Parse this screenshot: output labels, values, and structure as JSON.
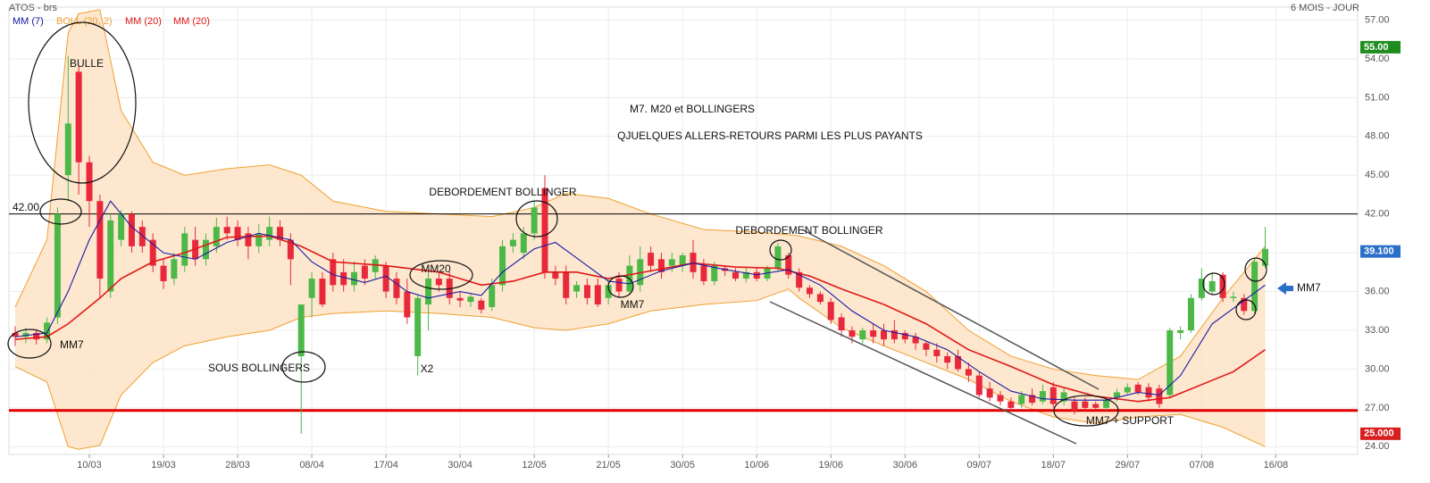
{
  "chart_data": {
    "type": "candlestick",
    "title": "ATOS - brs",
    "period": "6 MOIS - JOUR",
    "legend": [
      {
        "name": "MM (7)",
        "color": "#1a1aa6"
      },
      {
        "name": "BOLL (20, 2)",
        "color": "#f0a030"
      },
      {
        "name": "MM (20)",
        "color": "#e01818"
      },
      {
        "name": "MM (20)",
        "color": "#e01818"
      }
    ],
    "up_color": "#4cb848",
    "down_color": "#e8293c",
    "ohlc": [
      [
        32.8,
        33.3,
        31.8,
        32.5
      ],
      [
        32.5,
        33.2,
        32,
        32.8
      ],
      [
        32.8,
        33.1,
        31.9,
        32.3
      ],
      [
        32.3,
        34,
        32,
        33.6
      ],
      [
        34,
        42.5,
        33.5,
        42
      ],
      [
        45,
        54.2,
        43,
        49
      ],
      [
        53,
        53.5,
        43.5,
        46
      ],
      [
        46,
        46.5,
        41,
        43
      ],
      [
        43,
        43.5,
        35.5,
        37
      ],
      [
        36,
        42,
        35.5,
        41.5
      ],
      [
        40,
        42.3,
        39.5,
        42
      ],
      [
        42,
        42.2,
        39,
        39.5
      ],
      [
        41,
        41.5,
        39,
        39.5
      ],
      [
        40,
        40.5,
        37.5,
        38
      ],
      [
        38,
        38.5,
        36.2,
        36.8
      ],
      [
        37,
        39,
        36.5,
        38.5
      ],
      [
        38,
        41,
        37.5,
        40.5
      ],
      [
        40,
        41,
        38,
        38.5
      ],
      [
        38.5,
        40.5,
        38,
        40
      ],
      [
        39.5,
        41.7,
        39,
        41
      ],
      [
        41,
        41.8,
        40,
        40.5
      ],
      [
        41,
        41.5,
        39.5,
        40
      ],
      [
        40.5,
        41,
        38.5,
        39.5
      ],
      [
        39.5,
        41.2,
        39,
        40.5
      ],
      [
        40,
        41.8,
        39.5,
        41
      ],
      [
        41,
        41.5,
        39.5,
        40
      ],
      [
        40,
        40.5,
        36.5,
        38.5
      ],
      [
        31,
        35,
        25,
        35
      ],
      [
        35.5,
        37.5,
        34,
        37
      ],
      [
        37,
        37.5,
        34.8,
        35
      ],
      [
        38.5,
        39,
        36,
        36.5
      ],
      [
        37.5,
        38.5,
        36,
        36.5
      ],
      [
        36.5,
        38.3,
        36,
        37.5
      ],
      [
        38,
        38.5,
        36.5,
        37
      ],
      [
        37.5,
        38.8,
        37,
        38.5
      ],
      [
        38,
        38.3,
        35.5,
        36
      ],
      [
        37,
        37.5,
        35,
        35.5
      ],
      [
        36,
        37,
        33.5,
        34
      ],
      [
        31,
        35.8,
        29.5,
        35.5
      ],
      [
        35,
        37.5,
        33,
        37
      ],
      [
        37,
        37.5,
        36,
        36.5
      ],
      [
        37,
        37.5,
        35,
        35.5
      ],
      [
        35.5,
        36,
        34.8,
        35.3
      ],
      [
        35.2,
        35.8,
        34.8,
        35.6
      ],
      [
        35.3,
        35.5,
        34.3,
        34.6
      ],
      [
        34.8,
        37,
        34.5,
        36.5
      ],
      [
        36.5,
        40,
        36,
        39.5
      ],
      [
        39.5,
        40.5,
        39,
        40
      ],
      [
        39,
        41,
        38.5,
        40.5
      ],
      [
        40.5,
        43,
        40,
        42.5
      ],
      [
        44,
        45,
        37,
        37.5
      ],
      [
        37.5,
        38,
        36.5,
        37
      ],
      [
        37.5,
        38,
        35,
        35.5
      ],
      [
        36,
        36.8,
        35.5,
        36.5
      ],
      [
        36.5,
        37,
        35,
        35.5
      ],
      [
        36.5,
        37,
        34.8,
        35
      ],
      [
        35.5,
        37,
        35,
        36.5
      ],
      [
        37,
        37.5,
        35.5,
        36
      ],
      [
        36,
        38.8,
        35.8,
        38
      ],
      [
        36.5,
        39.5,
        36,
        38.5
      ],
      [
        39,
        39.5,
        37.5,
        38
      ],
      [
        38.5,
        39,
        37,
        37.5
      ],
      [
        38,
        39,
        37.5,
        38.5
      ],
      [
        38,
        39,
        37.5,
        38.8
      ],
      [
        39,
        40,
        37,
        37.5
      ],
      [
        38,
        38.5,
        36.5,
        36.8
      ],
      [
        36.8,
        38.3,
        36.5,
        38
      ],
      [
        37.8,
        38,
        37.2,
        37.6
      ],
      [
        37.5,
        37.8,
        36.8,
        37
      ],
      [
        37,
        37.8,
        36.7,
        37.5
      ],
      [
        37.5,
        37.8,
        36.8,
        37
      ],
      [
        37,
        38,
        36.8,
        37.8
      ],
      [
        37.8,
        39.8,
        37.5,
        39.5
      ],
      [
        38.8,
        39,
        37,
        37.3
      ],
      [
        37.5,
        37.8,
        36,
        36.3
      ],
      [
        36.3,
        36.5,
        35.5,
        35.8
      ],
      [
        35.8,
        36,
        35,
        35.2
      ],
      [
        35.2,
        35.5,
        33.5,
        33.8
      ],
      [
        34,
        34.3,
        32.5,
        33
      ],
      [
        33,
        33.3,
        32,
        32.5
      ],
      [
        32.3,
        33.2,
        32,
        33
      ],
      [
        33,
        33.5,
        32,
        32.5
      ],
      [
        33,
        33.5,
        31.8,
        32.3
      ],
      [
        33,
        33.8,
        32,
        32.3
      ],
      [
        32.8,
        33,
        32,
        32.3
      ],
      [
        32.5,
        32.8,
        31.5,
        32
      ],
      [
        32,
        32.2,
        31,
        31.5
      ],
      [
        31.5,
        32,
        30.5,
        31
      ],
      [
        31,
        31.3,
        30,
        30.5
      ],
      [
        31,
        31.5,
        29.8,
        30
      ],
      [
        30,
        30.5,
        29,
        29.5
      ],
      [
        29.5,
        29.8,
        27.8,
        28
      ],
      [
        28.5,
        29,
        27.5,
        27.8
      ],
      [
        28,
        28.3,
        27.2,
        27.5
      ],
      [
        27.5,
        27.8,
        26.8,
        27
      ],
      [
        27.3,
        28.3,
        27,
        28
      ],
      [
        28,
        28.5,
        27.2,
        27.4
      ],
      [
        27.5,
        28.8,
        27.3,
        28.3
      ],
      [
        28.6,
        29,
        27,
        27.3
      ],
      [
        27.5,
        28.5,
        27.2,
        28.2
      ],
      [
        27.5,
        27.8,
        26.5,
        26.8
      ],
      [
        27.5,
        27.8,
        26.8,
        27
      ],
      [
        27.3,
        27.5,
        26.8,
        27
      ],
      [
        27,
        27.8,
        26.8,
        27.6
      ],
      [
        27.8,
        28.5,
        27.5,
        28.2
      ],
      [
        28.2,
        28.9,
        28,
        28.6
      ],
      [
        28.8,
        29,
        28,
        28.2
      ],
      [
        28.6,
        28.9,
        27.5,
        27.8
      ],
      [
        28.5,
        28.8,
        27,
        27.3
      ],
      [
        28,
        33.2,
        27.8,
        33
      ],
      [
        32.8,
        33.3,
        32.3,
        33
      ],
      [
        33,
        35.8,
        32.8,
        35.5
      ],
      [
        35.5,
        37.8,
        35.3,
        37
      ],
      [
        36,
        37.5,
        35.8,
        36.8
      ],
      [
        37.3,
        37.5,
        35.2,
        35.5
      ],
      [
        35.5,
        36,
        35.2,
        35.6
      ],
      [
        35.5,
        35.8,
        34.2,
        34.5
      ],
      [
        34.5,
        38.5,
        34.3,
        38.3
      ],
      [
        38,
        41,
        37.8,
        39.3
      ]
    ],
    "bollinger": {
      "color": "#f0a030",
      "fill": "#fde3c6",
      "x": [
        0,
        3,
        5,
        6,
        8,
        10,
        13,
        16,
        20,
        24,
        27,
        30,
        35,
        40,
        45,
        49,
        52,
        56,
        60,
        65,
        70,
        73,
        74,
        78,
        82,
        86,
        90,
        94,
        98,
        102,
        106,
        110,
        114,
        118
      ],
      "upper": [
        34.8,
        40,
        56,
        57.5,
        57.8,
        50,
        46,
        45,
        45.5,
        45.8,
        45,
        43,
        42.2,
        42,
        41.8,
        42.5,
        43.6,
        43.2,
        42,
        40.8,
        40.6,
        40.4,
        40.3,
        39.5,
        38,
        36,
        33,
        31,
        30,
        29.5,
        29.2,
        31,
        35.5,
        39.5
      ],
      "lower": [
        30.2,
        29,
        24,
        23.8,
        24.1,
        28,
        30.5,
        31.8,
        32.5,
        33,
        34,
        34.3,
        34.5,
        34.3,
        34,
        33.2,
        33,
        33.5,
        34.5,
        35,
        35.3,
        36.2,
        35.5,
        33.2,
        31.8,
        30.5,
        29.2,
        27.5,
        26.3,
        25.8,
        26.3,
        26.5,
        25.5,
        24
      ]
    },
    "ma_lines": [
      {
        "color": "#e01818",
        "x": [
          0,
          3,
          5,
          8,
          10,
          13,
          16,
          20,
          24,
          27,
          30,
          35,
          40,
          44,
          47,
          50,
          53,
          56,
          60,
          64,
          68,
          72,
          75,
          78,
          82,
          86,
          90,
          94,
          98,
          102,
          106,
          109,
          112,
          115,
          118
        ],
        "values": [
          32.3,
          32.5,
          33.5,
          35.5,
          37,
          38.3,
          39,
          40.2,
          40.3,
          39.5,
          38.3,
          38,
          37.5,
          36.5,
          36.8,
          37.5,
          37.5,
          37,
          37.6,
          38.2,
          37.9,
          37.8,
          37.2,
          36.2,
          35,
          33.5,
          31.5,
          30.2,
          28.8,
          27.9,
          27.5,
          27.8,
          28.8,
          29.8,
          31.5
        ]
      },
      {
        "color": "#1a1aa6",
        "x": [
          0,
          3,
          5,
          7,
          9,
          11,
          14,
          17,
          20,
          23,
          26,
          28,
          30,
          33,
          35,
          37,
          39,
          42,
          44,
          46,
          49,
          51,
          53,
          56,
          58,
          61,
          64,
          67,
          70,
          73,
          76,
          79,
          82,
          85,
          88,
          91,
          94,
          97,
          100,
          103,
          106,
          108,
          110,
          113,
          116,
          118
        ],
        "values": [
          32.5,
          32.8,
          36,
          40,
          43,
          41,
          39,
          38.5,
          39.8,
          40.5,
          40,
          38.3,
          37.3,
          36.7,
          37.2,
          36,
          35.5,
          36,
          35.7,
          37.5,
          39.3,
          39.8,
          38.6,
          36.8,
          36.6,
          37.6,
          38.2,
          37.7,
          37.3,
          37.7,
          36.5,
          34.5,
          33,
          32.5,
          31.5,
          29.8,
          28.3,
          27.7,
          27.6,
          27.6,
          28.2,
          28,
          29.5,
          33.5,
          35.3,
          36.5
        ]
      }
    ],
    "hlines": [
      {
        "value": 42,
        "color": "#000000"
      },
      {
        "value": 26.8,
        "color": "#e00000"
      }
    ],
    "price_tags": [
      {
        "value": 54.9,
        "label": "55.00",
        "color": "#1e8c1e"
      },
      {
        "value": 39.1,
        "label": "39.100",
        "color": "#2a6fc9"
      },
      {
        "value": 25,
        "label": "25.000",
        "color": "#d81e1e"
      }
    ],
    "annotations": [
      "BULLE",
      "42.00",
      "MM7",
      "SOUS BOLLINGERS",
      "X2",
      "MM20",
      "DEBORDEMENT BOLLINGER",
      "M7. M20 et BOLLINGERS",
      "QJUELQUES ALLERS-RETOURS PARMI LES PLUS PAYANTS",
      "MM7",
      "DEBORDEMENT BOLLINGER",
      "MM7 + SUPPORT",
      "MM7"
    ],
    "ylim": [
      23.4,
      58
    ],
    "yticks": [
      {
        "value": 24,
        "label": "24.00"
      },
      {
        "value": 27,
        "label": "27.00"
      },
      {
        "value": 30,
        "label": "30.00"
      },
      {
        "value": 33,
        "label": "33.00"
      },
      {
        "value": 36,
        "label": "36.00"
      },
      {
        "value": 39,
        "label": "39.00"
      },
      {
        "value": 42,
        "label": "42.00"
      },
      {
        "value": 45,
        "label": "45.00"
      },
      {
        "value": 48,
        "label": "48.00"
      },
      {
        "value": 51,
        "label": "51.00"
      },
      {
        "value": 54,
        "label": "54.00"
      },
      {
        "value": 57,
        "label": "57.00"
      }
    ],
    "xticks": [
      {
        "value": 7,
        "label": "10/03"
      },
      {
        "value": 14,
        "label": "19/03"
      },
      {
        "value": 21,
        "label": "28/03"
      },
      {
        "value": 28,
        "label": "08/04"
      },
      {
        "value": 35,
        "label": "17/04"
      },
      {
        "value": 42,
        "label": "30/04"
      },
      {
        "value": 49,
        "label": "12/05"
      },
      {
        "value": 56,
        "label": "21/05"
      },
      {
        "value": 63,
        "label": "30/05"
      },
      {
        "value": 70,
        "label": "10/06"
      },
      {
        "value": 77,
        "label": "19/06"
      },
      {
        "value": 84,
        "label": "30/06"
      },
      {
        "value": 91,
        "label": "09/07"
      },
      {
        "value": 98,
        "label": "18/07"
      },
      {
        "value": 105,
        "label": "29/07"
      },
      {
        "value": 112,
        "label": "07/08"
      },
      {
        "value": 119,
        "label": "16/08"
      }
    ],
    "grid": true
  }
}
